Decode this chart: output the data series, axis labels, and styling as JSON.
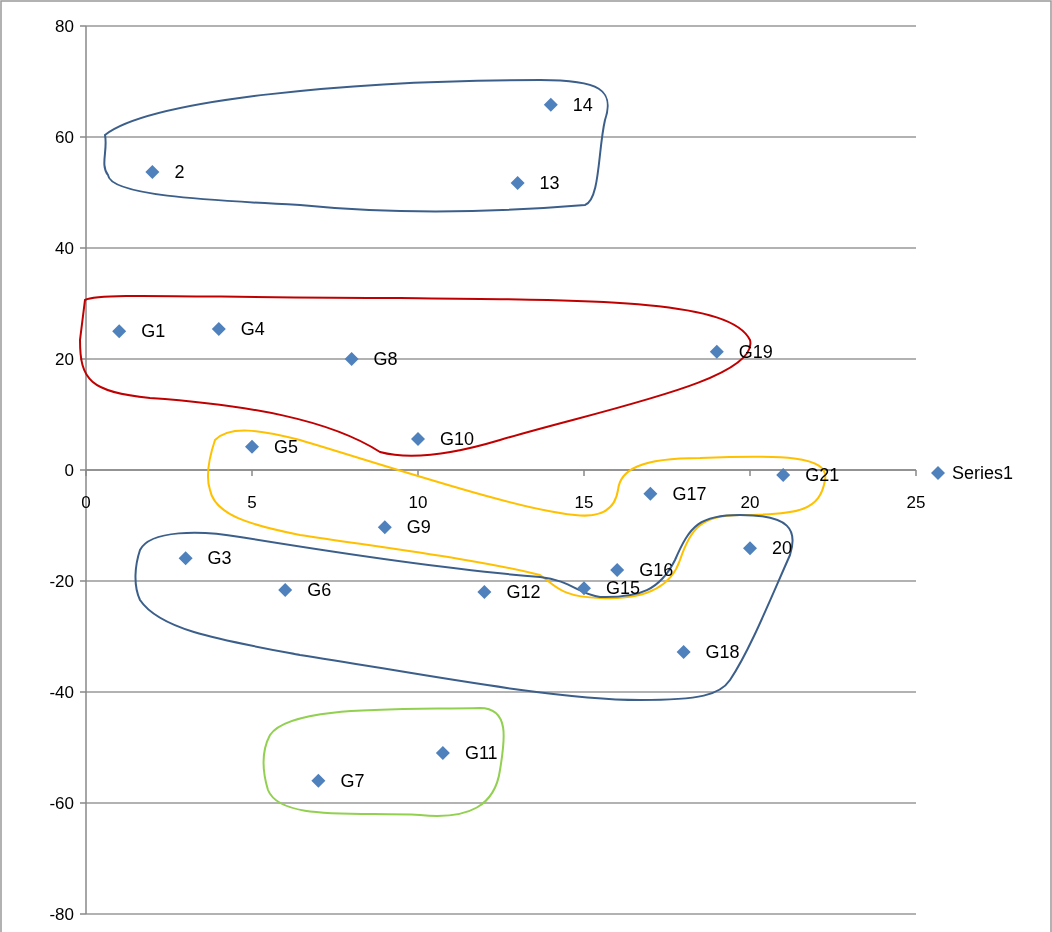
{
  "chart_data": {
    "type": "scatter",
    "xlim": [
      0,
      25
    ],
    "ylim": [
      -80,
      80
    ],
    "xticks": [
      0,
      5,
      10,
      15,
      20,
      25
    ],
    "yticks": [
      -80,
      -60,
      -40,
      -20,
      0,
      20,
      40,
      60,
      80
    ],
    "grid": "y",
    "legend": "right",
    "marker": "diamond",
    "series": [
      {
        "name": "Series1",
        "color": "#4f81bd",
        "x": [
          2,
          14,
          13,
          1,
          4,
          8,
          10,
          5,
          19,
          21,
          17,
          20,
          16,
          15,
          18,
          9,
          3,
          6,
          12,
          7,
          10.75
        ],
        "values": [
          53.7,
          65.8,
          51.7,
          25,
          25.4,
          20,
          5.6,
          4.2,
          21.3,
          -0.9,
          -4.3,
          -14.1,
          -18,
          -21.3,
          -32.8,
          -10.3,
          -15.9,
          -21.6,
          -22,
          -56,
          -51
        ]
      }
    ],
    "annotations": [
      {
        "text": "2",
        "x": 2,
        "y": 53.7
      },
      {
        "text": "14",
        "x": 14,
        "y": 65.8
      },
      {
        "text": "13",
        "x": 13,
        "y": 51.7
      },
      {
        "text": "G1",
        "x": 1,
        "y": 25
      },
      {
        "text": "G4",
        "x": 4,
        "y": 25.4
      },
      {
        "text": "G8",
        "x": 8,
        "y": 20
      },
      {
        "text": "G10",
        "x": 10,
        "y": 5.6
      },
      {
        "text": "G5",
        "x": 5,
        "y": 4.2
      },
      {
        "text": "G19",
        "x": 19,
        "y": 21.3
      },
      {
        "text": "G21",
        "x": 21,
        "y": -0.9
      },
      {
        "text": "G17",
        "x": 17,
        "y": -4.3
      },
      {
        "text": "20",
        "x": 20,
        "y": -14.1
      },
      {
        "text": "G16",
        "x": 16,
        "y": -18
      },
      {
        "text": "G15",
        "x": 15,
        "y": -21.3
      },
      {
        "text": "G18",
        "x": 18,
        "y": -32.8
      },
      {
        "text": "G9",
        "x": 9,
        "y": -10.3
      },
      {
        "text": "G3",
        "x": 3,
        "y": -15.9
      },
      {
        "text": "G6",
        "x": 6,
        "y": -21.6
      },
      {
        "text": "G12",
        "x": 12,
        "y": -22
      },
      {
        "text": "G7",
        "x": 7,
        "y": -56
      },
      {
        "text": "G11",
        "x": 10.75,
        "y": -51
      }
    ]
  }
}
